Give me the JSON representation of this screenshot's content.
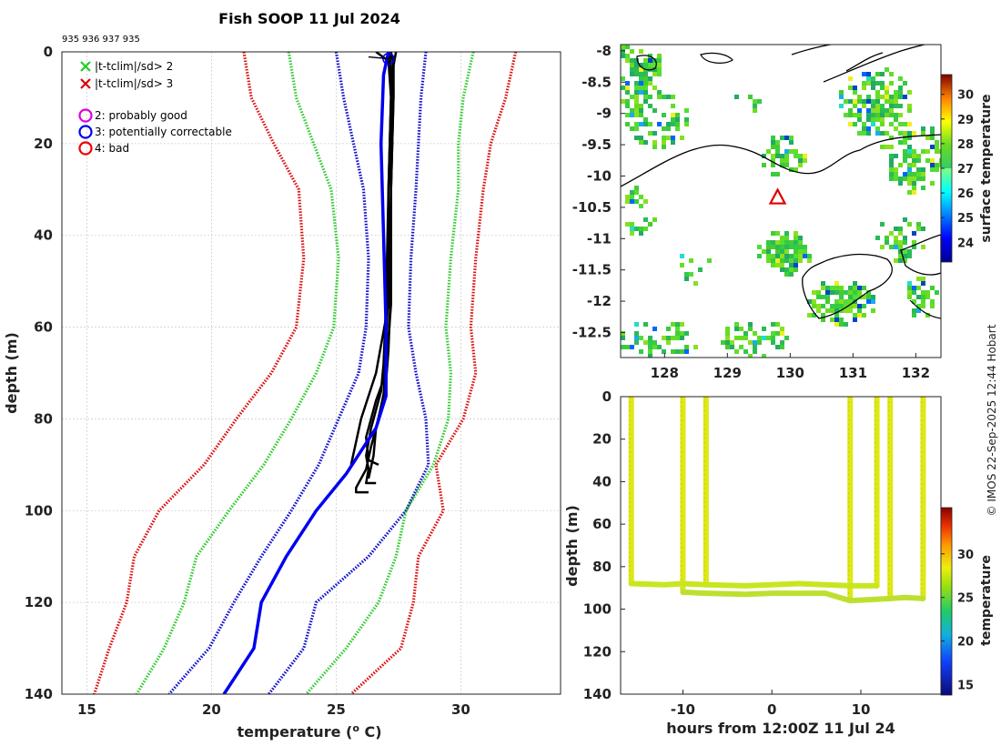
{
  "chart_data": [
    {
      "type": "line",
      "title": "Fish SOOP 11 Jul 2024",
      "subtitle": "935 936 937 935",
      "xlabel": "temperature (° C)",
      "xlabel_prefix": "temperature (",
      "xlabel_deg": "o",
      "xlabel_suffix": " C)",
      "ylabel": "depth (m)",
      "xlim": [
        14,
        34
      ],
      "ylim": [
        0,
        140
      ],
      "xticks": [
        15,
        20,
        25,
        30
      ],
      "yticks": [
        0,
        20,
        40,
        60,
        80,
        100,
        120,
        140
      ],
      "grid": true,
      "legend": [
        {
          "marker": "x",
          "color": "#22cc22",
          "label": "|t-tclim|/sd> 2"
        },
        {
          "marker": "x",
          "color": "#dd0000",
          "label": "|t-tclim|/sd> 3"
        },
        {
          "marker": "o",
          "color": "#dd00dd",
          "label": "2: probably good"
        },
        {
          "marker": "o",
          "color": "#0000ee",
          "label": "3: potentially correctable"
        },
        {
          "marker": "o",
          "color": "#ee0000",
          "label": "4: bad"
        }
      ],
      "series": [
        {
          "name": "clim -3sd",
          "style": "dotted",
          "color": "#dd1111",
          "x": [
            21.3,
            21.6,
            22.5,
            23.5,
            23.7,
            23.4,
            22.4,
            21.0,
            19.7,
            17.9,
            16.9,
            16.6,
            15.9,
            15.3
          ],
          "y": [
            0,
            10,
            20,
            30,
            45,
            60,
            70,
            80,
            90,
            100,
            110,
            120,
            130,
            140
          ]
        },
        {
          "name": "clim -2sd",
          "style": "dotted",
          "color": "#33cc33",
          "x": [
            23.1,
            23.4,
            24.1,
            24.8,
            25.1,
            24.9,
            24.2,
            23.2,
            22.1,
            20.7,
            19.4,
            18.9,
            18.1,
            17.0
          ],
          "y": [
            0,
            10,
            20,
            30,
            45,
            60,
            70,
            80,
            90,
            100,
            110,
            120,
            130,
            140
          ]
        },
        {
          "name": "clim -1sd",
          "style": "dotted",
          "color": "#1111cc",
          "x": [
            25.0,
            25.3,
            25.7,
            26.1,
            26.3,
            26.2,
            25.9,
            25.1,
            24.3,
            23.2,
            22.0,
            20.9,
            19.9,
            18.3
          ],
          "y": [
            0,
            10,
            20,
            30,
            45,
            60,
            70,
            80,
            90,
            100,
            110,
            120,
            130,
            140
          ]
        },
        {
          "name": "clim +1sd",
          "style": "dotted",
          "color": "#1111cc",
          "x": [
            28.6,
            28.4,
            28.3,
            28.2,
            28.0,
            27.9,
            28.2,
            28.6,
            28.7,
            27.8,
            26.3,
            24.2,
            23.7,
            22.3
          ],
          "y": [
            0,
            10,
            20,
            30,
            45,
            60,
            70,
            80,
            90,
            100,
            110,
            120,
            130,
            140
          ]
        },
        {
          "name": "clim +2sd",
          "style": "dotted",
          "color": "#33cc33",
          "x": [
            30.5,
            30.1,
            29.9,
            29.9,
            29.6,
            29.4,
            29.6,
            29.5,
            28.9,
            27.8,
            27.4,
            26.7,
            25.4,
            23.8
          ],
          "y": [
            0,
            10,
            20,
            30,
            45,
            60,
            70,
            80,
            90,
            100,
            110,
            120,
            130,
            140
          ]
        },
        {
          "name": "clim +3sd",
          "style": "dotted",
          "color": "#dd1111",
          "x": [
            32.2,
            31.8,
            31.2,
            30.9,
            30.6,
            30.4,
            30.6,
            30.1,
            29.0,
            29.3,
            28.3,
            28.1,
            27.6,
            25.6
          ],
          "y": [
            0,
            10,
            20,
            30,
            45,
            60,
            70,
            80,
            90,
            100,
            110,
            120,
            130,
            140
          ]
        },
        {
          "name": "profile 1",
          "style": "solid",
          "color": "#000000",
          "width": 2.5,
          "x": [
            26.6,
            27.1,
            27.2,
            27.1,
            27.1,
            27.0,
            26.9,
            26.6,
            26.5,
            26.3
          ],
          "y": [
            0,
            2,
            10,
            30,
            50,
            65,
            75,
            82,
            88,
            93
          ]
        },
        {
          "name": "profile 2",
          "style": "solid",
          "color": "#000000",
          "width": 2.5,
          "x": [
            27.1,
            27.3,
            27.3,
            27.2,
            27.2,
            27.1,
            27.0,
            26.7,
            26.4,
            26.2,
            25.8,
            25.8,
            26.3
          ],
          "y": [
            0,
            2,
            10,
            30,
            50,
            65,
            72,
            80,
            86,
            91,
            95,
            96,
            96
          ]
        },
        {
          "name": "profile 3",
          "style": "solid",
          "color": "#000000",
          "width": 2.5,
          "x": [
            27.2,
            27.3,
            27.3,
            27.2,
            27.2,
            27.0,
            26.6,
            26.2,
            26.3,
            26.7
          ],
          "y": [
            0,
            3,
            10,
            30,
            55,
            70,
            76,
            84,
            89,
            90
          ]
        },
        {
          "name": "profile 4",
          "style": "solid",
          "color": "#000000",
          "width": 2.5,
          "x": [
            27.1,
            27.2,
            27.2,
            27.1,
            27.0,
            26.9,
            26.8,
            26.4,
            26.2,
            26.3,
            26.2,
            26.6
          ],
          "y": [
            0,
            3,
            10,
            30,
            55,
            68,
            74,
            82,
            88,
            91,
            94,
            94
          ]
        },
        {
          "name": "profile 5",
          "style": "solid",
          "color": "#000000",
          "width": 2.5,
          "x": [
            27.4,
            27.3,
            27.2,
            27.2,
            27.1,
            26.6,
            26.0,
            25.6
          ],
          "y": [
            0,
            3,
            10,
            30,
            55,
            70,
            80,
            90
          ]
        },
        {
          "name": "flagged profile",
          "style": "solid",
          "color": "#0000ee",
          "width": 3.5,
          "x": [
            27.1,
            26.9,
            26.8,
            26.9,
            27.0,
            27.0,
            26.6,
            25.4,
            24.2,
            23.0,
            22.0,
            21.7,
            20.5
          ],
          "y": [
            0,
            5,
            20,
            40,
            60,
            75,
            82,
            92,
            100,
            110,
            120,
            130,
            140
          ]
        }
      ],
      "flag_marker": {
        "x": 27.1,
        "y": 1.5,
        "color": "#0000ee"
      }
    },
    {
      "type": "heatmap",
      "title": "",
      "colorbar_label": "surface temperature",
      "colorbar_ticks": [
        24,
        25,
        26,
        27,
        28,
        29,
        30
      ],
      "colorbar_range": [
        23.2,
        30.8
      ],
      "xlim": [
        127.3,
        132.4
      ],
      "ylim": [
        -12.9,
        -7.9
      ],
      "xticks": [
        128,
        129,
        130,
        131,
        132
      ],
      "yticks": [
        -8,
        -8.5,
        -9,
        -9.5,
        -10,
        -10.5,
        -11,
        -11.5,
        -12,
        -12.5
      ],
      "ytick_labels": [
        "-8",
        "-8.5",
        "-9",
        "-9.5",
        "-10",
        "-10.5",
        "-11",
        "-11.5",
        "-12",
        "-12.5"
      ],
      "ship_position": {
        "lon": 129.8,
        "lat": -10.35,
        "marker": "triangle",
        "color": "#dd0000"
      }
    },
    {
      "type": "scatter",
      "title": "",
      "xlabel": "hours from 12:00Z 11 Jul 24",
      "ylabel": "depth (m)",
      "colorbar_label": "temperature",
      "colorbar_ticks": [
        15,
        20,
        25,
        30
      ],
      "colorbar_range": [
        13.8,
        35.3
      ],
      "xlim": [
        -17,
        19
      ],
      "ylim": [
        0,
        140
      ],
      "xticks": [
        -10,
        0,
        10
      ],
      "yticks": [
        0,
        20,
        40,
        60,
        80,
        100,
        120,
        140
      ],
      "casts": [
        {
          "hour": -15.8,
          "bottom": 88
        },
        {
          "hour": -10.0,
          "bottom": 92
        },
        {
          "hour": -7.4,
          "bottom": 88
        },
        {
          "hour": 8.8,
          "bottom": 96
        },
        {
          "hour": 11.8,
          "bottom": 89
        },
        {
          "hour": 13.3,
          "bottom": 95
        },
        {
          "hour": 17.0,
          "bottom": 95
        }
      ],
      "sections": [
        {
          "hours": [
            -15.8,
            -12,
            -10,
            -7.4,
            -3,
            0,
            3,
            6,
            8.8,
            11.8
          ],
          "depths": [
            88,
            88.5,
            88,
            88.5,
            89,
            88.5,
            88,
            88.5,
            89,
            89
          ]
        },
        {
          "hours": [
            -10,
            -7.4,
            -3,
            0,
            3,
            6,
            8.8,
            11,
            13.3,
            15,
            17
          ],
          "depths": [
            92,
            92.5,
            93,
            92.5,
            92.5,
            92.5,
            96,
            95.5,
            95,
            94.5,
            95
          ]
        }
      ]
    }
  ],
  "credit": "© IMOS 22-Sep-2025 12:44 Hobart"
}
